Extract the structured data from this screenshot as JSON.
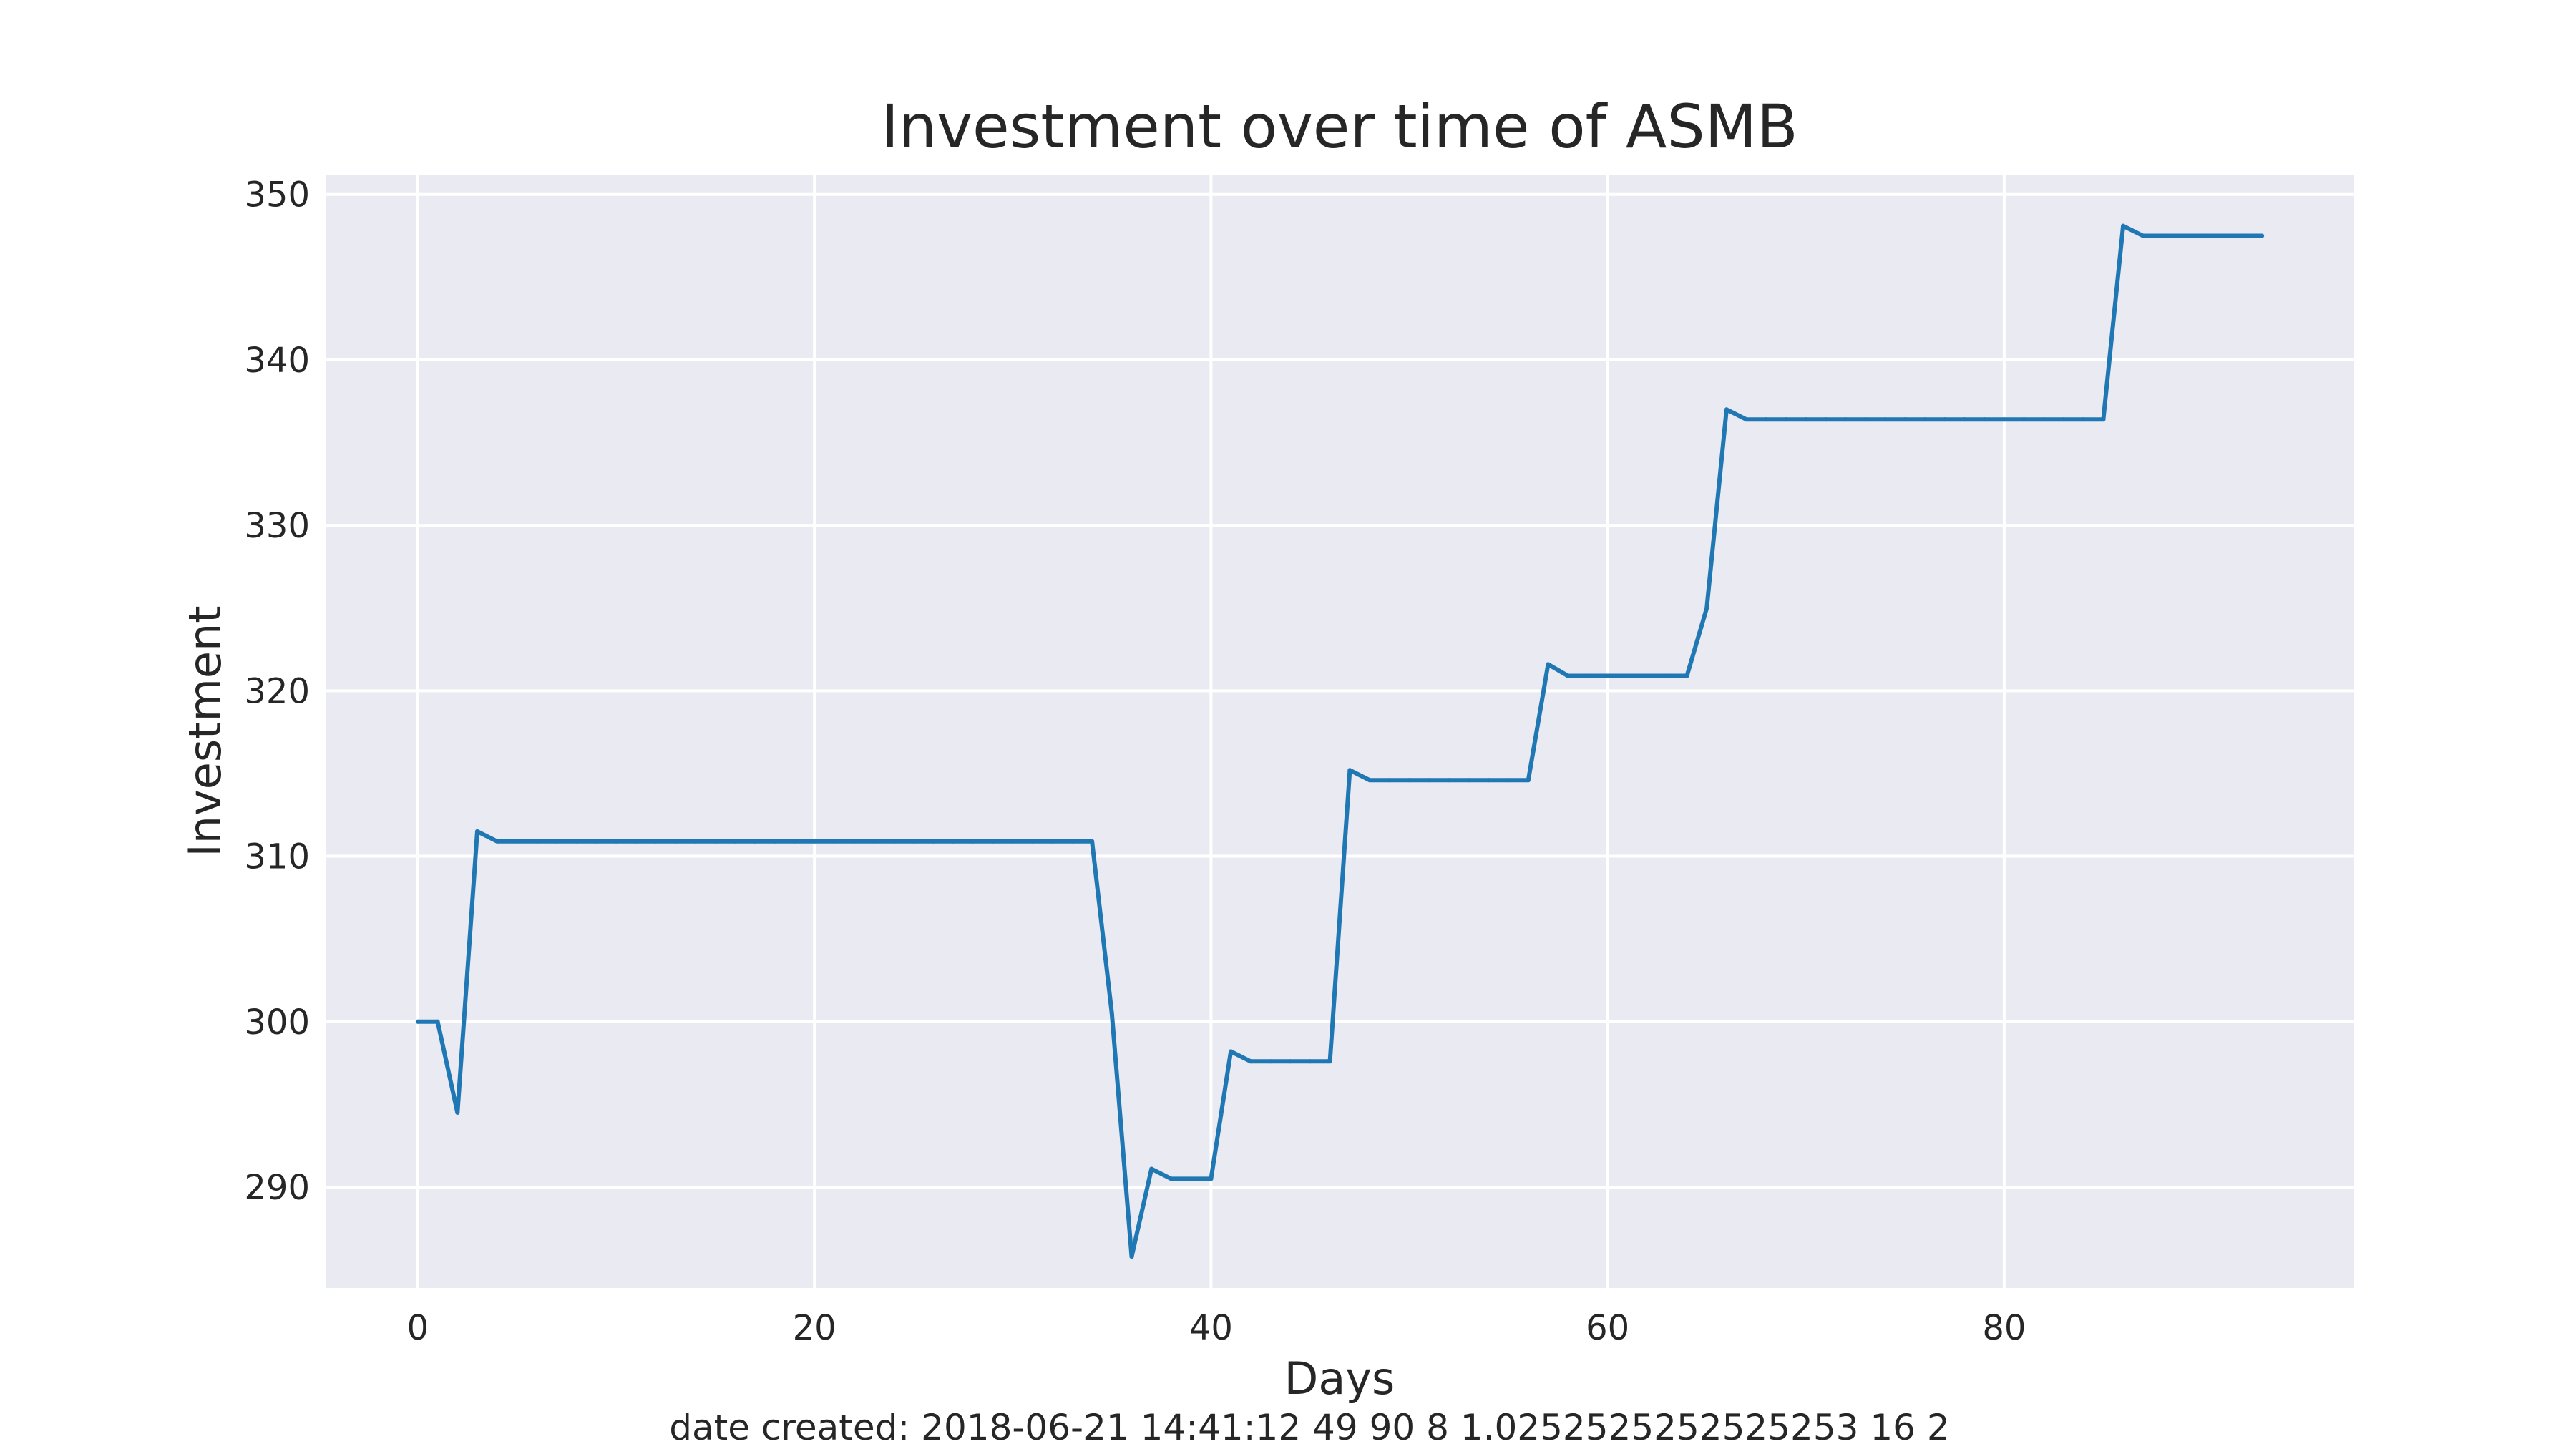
{
  "chart_data": {
    "type": "line",
    "title": "Investment over time of ASMB",
    "xlabel": "Days",
    "ylabel": "Investment",
    "footer": "date created: 2018-06-21 14:41:12 49 90 8 1.0252525252525253 16 2",
    "xlim": [
      -4.65,
      97.65
    ],
    "ylim": [
      283.9,
      351.2
    ],
    "xticks": [
      0,
      20,
      40,
      60,
      80
    ],
    "yticks": [
      290,
      300,
      310,
      320,
      330,
      340,
      350
    ],
    "grid": true,
    "background": "#eaeaf2",
    "grid_color": "#ffffff",
    "line_color": "#1f77b4",
    "series": [
      {
        "x": [
          0,
          1,
          2,
          3,
          4,
          5,
          6,
          7,
          8,
          9,
          10,
          11,
          12,
          13,
          14,
          15,
          16,
          17,
          18,
          19,
          20,
          21,
          22,
          23,
          24,
          25,
          26,
          27,
          28,
          29,
          30,
          31,
          32,
          33,
          34,
          35,
          36,
          37,
          38,
          39,
          40,
          41,
          42,
          43,
          44,
          45,
          46,
          47,
          48,
          49,
          50,
          51,
          52,
          53,
          54,
          55,
          56,
          57,
          58,
          59,
          60,
          61,
          62,
          63,
          64,
          65,
          66,
          67,
          68,
          69,
          70,
          71,
          72,
          73,
          74,
          75,
          76,
          77,
          78,
          79,
          80,
          81,
          82,
          83,
          84,
          85,
          86,
          87,
          88,
          89,
          90,
          91,
          92,
          93
        ],
        "y": [
          300.0,
          300.0,
          294.5,
          311.5,
          310.9,
          310.9,
          310.9,
          310.9,
          310.9,
          310.9,
          310.9,
          310.9,
          310.9,
          310.9,
          310.9,
          310.9,
          310.9,
          310.9,
          310.9,
          310.9,
          310.9,
          310.9,
          310.9,
          310.9,
          310.9,
          310.9,
          310.9,
          310.9,
          310.9,
          310.9,
          310.9,
          310.9,
          310.9,
          310.9,
          310.9,
          300.5,
          285.8,
          291.1,
          290.5,
          290.5,
          290.5,
          298.2,
          297.6,
          297.6,
          297.6,
          297.6,
          297.6,
          315.2,
          314.6,
          314.6,
          314.6,
          314.6,
          314.6,
          314.6,
          314.6,
          314.6,
          314.6,
          321.6,
          320.9,
          320.9,
          320.9,
          320.9,
          320.9,
          320.9,
          320.9,
          325.0,
          337.0,
          336.4,
          336.4,
          336.4,
          336.4,
          336.4,
          336.4,
          336.4,
          336.4,
          336.4,
          336.4,
          336.4,
          336.4,
          336.4,
          336.4,
          336.4,
          336.4,
          336.4,
          336.4,
          336.4,
          348.1,
          347.5,
          347.5,
          347.5,
          347.5,
          347.5,
          347.5,
          347.5
        ]
      }
    ]
  }
}
